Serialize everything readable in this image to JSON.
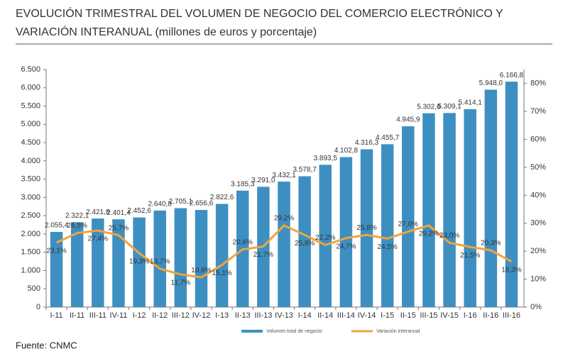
{
  "chart_data": {
    "type": "bar-line",
    "title": [
      "EVOLUCIÓN TRIMESTRAL DEL VOLUMEN DE NEGOCIO DEL COMERCIO ELECTRÓNICO Y",
      "VARIACIÓN INTERANUAL (millones de euros y porcentaje)"
    ],
    "source": "Fuente: CNMC",
    "categories": [
      "I-11",
      "II-11",
      "III-11",
      "IV-11",
      "I-12",
      "II-12",
      "III-12",
      "IV-12",
      "I-13",
      "II-13",
      "III-13",
      "IV-13",
      "I-14",
      "II-14",
      "III-14",
      "IV-14",
      "I-15",
      "II-15",
      "III-15",
      "IV-15",
      "I-16",
      "II-16",
      "III-16"
    ],
    "series": [
      {
        "name": "Volumen total de negocio",
        "color": "#3d8fc1",
        "kind": "bar",
        "values": [
          2055.4,
          2322.1,
          2421.8,
          2401.4,
          2452.6,
          2640.8,
          2705.1,
          2656.6,
          2822.6,
          3185.3,
          3291.0,
          3432.1,
          3578.7,
          3893.5,
          4102.8,
          4316.3,
          4455.7,
          4945.9,
          5302.6,
          5309.1,
          5414.1,
          5948.0,
          6166.8
        ],
        "value_labels": [
          "2.055,4",
          "2.322,1",
          "2.421,8",
          "2.401,4",
          "2.452,6",
          "2.640,8",
          "2.705,1",
          "2.656,6",
          "2.822,6",
          "3.185,3",
          "3.291,0",
          "3.432,1",
          "3.578,7",
          "3.893,5",
          "4.102,8",
          "4.316,3",
          "4.455,7",
          "4.945,9",
          "5.302,6",
          "5.309,1",
          "5.414,1",
          "5.948,0",
          "6.166,8"
        ]
      },
      {
        "name": "Variación interanual",
        "color": "#f2a33a",
        "kind": "line",
        "axis": "y2",
        "values": [
          23.1,
          26.5,
          27.4,
          25.7,
          19.3,
          13.7,
          11.7,
          10.6,
          15.1,
          20.6,
          21.7,
          29.2,
          25.8,
          22.2,
          24.7,
          25.8,
          24.5,
          27.0,
          29.2,
          23.0,
          21.5,
          20.3,
          16.3
        ],
        "value_labels": [
          "23,1%",
          "26,5%",
          "27,4%",
          "25,7%",
          "19,3%",
          "13,7%",
          "11,7%",
          "10,6%",
          "15,1%",
          "20,6%",
          "21,7%",
          "29,2%",
          "25,8%",
          "22,2%",
          "24,7%",
          "25,8%",
          "24,5%",
          "27,0%",
          "29,2%",
          "23,0%",
          "21,5%",
          "20,3%",
          "16,3%"
        ]
      }
    ],
    "ylim": [
      0,
      6500
    ],
    "yticks": [
      0,
      500,
      {
        "value": 1000,
        "label": "1.000"
      },
      {
        "value": 1500,
        "label": "1.500"
      },
      {
        "value": 2000,
        "label": "2.000"
      },
      {
        "value": 2500,
        "label": "2.500"
      },
      {
        "value": 3000,
        "label": "3.000"
      },
      {
        "value": 3500,
        "label": "3.500"
      },
      {
        "value": 4000,
        "label": "4.000"
      },
      {
        "value": 4500,
        "label": "4.500"
      },
      {
        "value": 5000,
        "label": "5.000"
      },
      {
        "value": 5500,
        "label": "5.500"
      },
      {
        "value": 6000,
        "label": "6.000"
      },
      {
        "value": 6500,
        "label": "6.500"
      }
    ],
    "y2lim": [
      0,
      85
    ],
    "y2ticks": [
      {
        "value": 0,
        "label": "0%"
      },
      {
        "value": 10,
        "label": "10%"
      },
      {
        "value": 20,
        "label": "20%"
      },
      {
        "value": 30,
        "label": "30%"
      },
      {
        "value": 40,
        "label": "40%"
      },
      {
        "value": 50,
        "label": "50%"
      },
      {
        "value": 60,
        "label": "60%"
      },
      {
        "value": 70,
        "label": "70%"
      },
      {
        "value": 80,
        "label": "80%"
      }
    ]
  }
}
